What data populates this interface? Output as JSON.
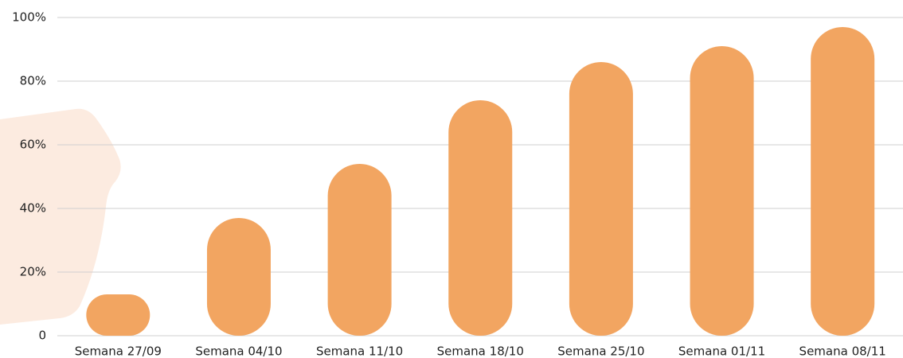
{
  "chart_data": {
    "type": "bar",
    "categories": [
      "Semana 27/09",
      "Semana 04/10",
      "Semana 11/10",
      "Semana 18/10",
      "Semana 25/10",
      "Semana 01/11",
      "Semana 08/11"
    ],
    "values": [
      13,
      37,
      54,
      74,
      86,
      91,
      97
    ],
    "color": "#f2a561",
    "ylim": [
      0,
      100
    ],
    "yticks": [
      0,
      {
        "value": 20,
        "label": "20%"
      },
      {
        "value": 40,
        "label": "40%"
      },
      {
        "value": 60,
        "label": "60%"
      },
      {
        "value": 80,
        "label": "80%"
      },
      {
        "value": 100,
        "label": "100%"
      }
    ],
    "grid": true
  }
}
